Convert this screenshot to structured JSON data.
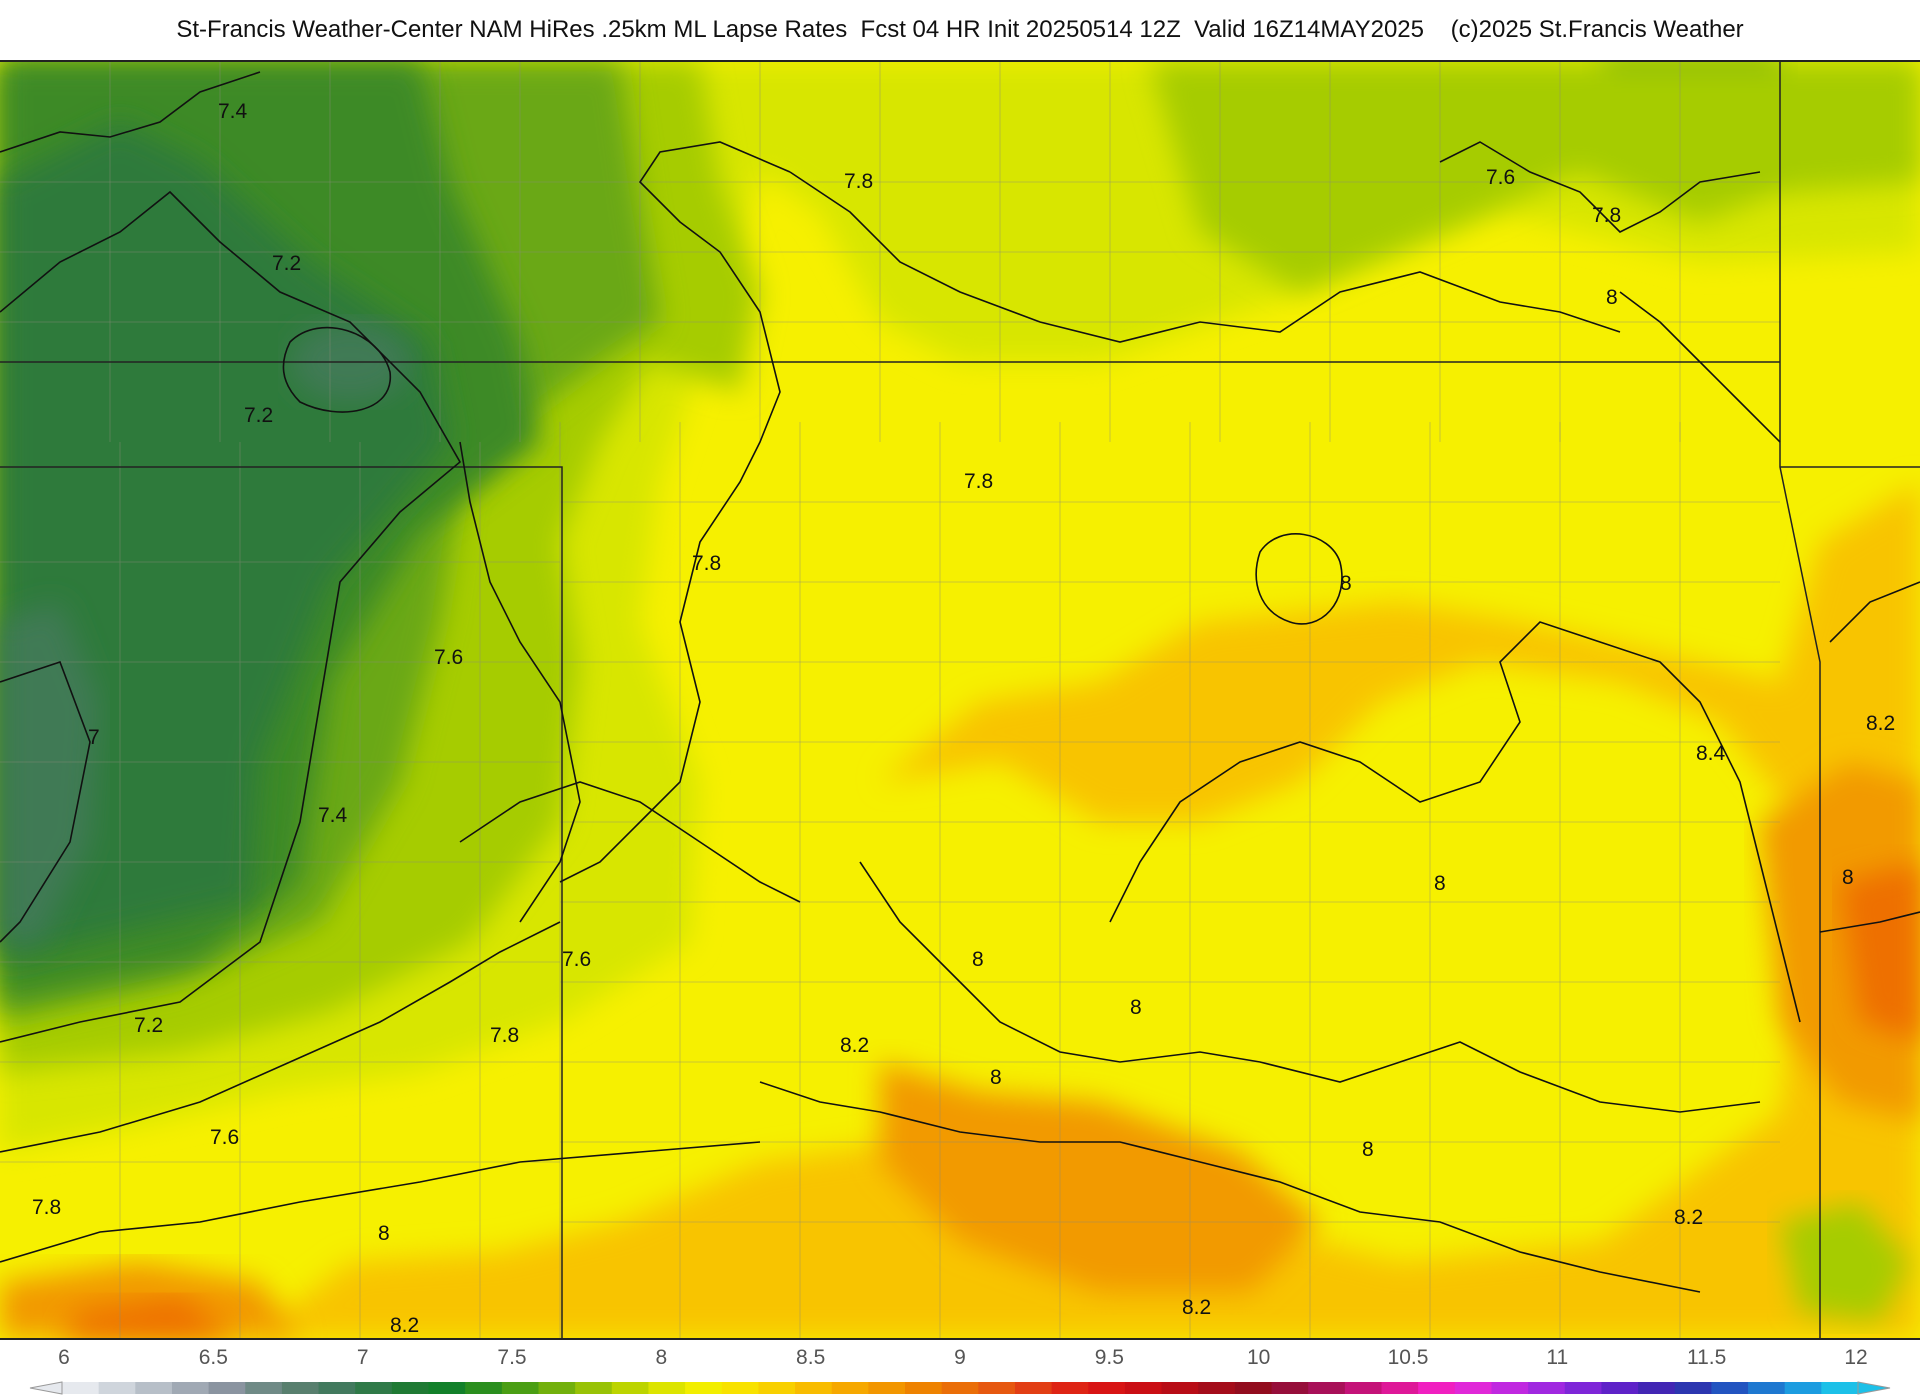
{
  "header": {
    "title": "St-Francis Weather-Center NAM HiRes .25km ML Lapse Rates  Fcst 04 HR Init 20250514 12Z  Valid 16Z14MAY2025    (c)2025 St.Francis Weather"
  },
  "map": {
    "field": "ML Lapse Rates",
    "colors": {
      "c6": "#d8dde3",
      "c65": "#8d9aa6",
      "c68": "#3f7a55",
      "c70": "#2e7a3a",
      "c72": "#3d8a28",
      "c74": "#6aa818",
      "c76": "#a6cc00",
      "c78": "#d8e600",
      "c80": "#f6f000",
      "c82": "#f8c400",
      "c84": "#f29a00",
      "c86": "#ee7000",
      "c88": "#e84010",
      "c90": "#e01010"
    },
    "contour_labels": [
      {
        "value": "7.4",
        "x": 8.1,
        "y": 7.4
      },
      {
        "value": "7.2",
        "x": 8.3,
        "y": 7.2
      },
      {
        "value": "7.2",
        "x": 8.0,
        "y": 7.2
      },
      {
        "value": "7",
        "x": 7.0,
        "y": 7.0
      },
      {
        "value": "7.4",
        "x": 7.4,
        "y": 7.4
      },
      {
        "value": "7.6",
        "x": 7.6,
        "y": 7.6
      },
      {
        "value": "7.2",
        "x": 7.2,
        "y": 7.2
      },
      {
        "value": "7.6",
        "x": 7.6,
        "y": 7.6
      },
      {
        "value": "7.8",
        "x": 7.8,
        "y": 7.8
      },
      {
        "value": "7.8",
        "x": 7.8,
        "y": 7.8
      },
      {
        "value": "8",
        "x": 8.0,
        "y": 8.0
      },
      {
        "value": "8.2",
        "x": 8.2,
        "y": 8.2
      },
      {
        "value": "7.8",
        "x": 7.8,
        "y": 7.8
      },
      {
        "value": "7.8",
        "x": 7.8,
        "y": 7.8
      },
      {
        "value": "7.8",
        "x": 7.8,
        "y": 7.8
      },
      {
        "value": "7.6",
        "x": 7.6,
        "y": 7.6
      },
      {
        "value": "7.6",
        "x": 7.6,
        "y": 7.6
      },
      {
        "value": "7.8",
        "x": 7.8,
        "y": 7.8
      },
      {
        "value": "8",
        "x": 8.0,
        "y": 8.0
      },
      {
        "value": "8",
        "x": 8.0,
        "y": 8.0
      },
      {
        "value": "8.2",
        "x": 8.2,
        "y": 8.2
      },
      {
        "value": "8.4",
        "x": 8.4,
        "y": 8.4
      },
      {
        "value": "8",
        "x": 8.0,
        "y": 8.0
      },
      {
        "value": "8",
        "x": 8.0,
        "y": 8.0
      },
      {
        "value": "8",
        "x": 8.0,
        "y": 8.0
      },
      {
        "value": "8",
        "x": 8.0,
        "y": 8.0
      },
      {
        "value": "8.2",
        "x": 8.2,
        "y": 8.2
      },
      {
        "value": "8",
        "x": 8.0,
        "y": 8.0
      },
      {
        "value": "8",
        "x": 8.0,
        "y": 8.0
      },
      {
        "value": "8.2",
        "x": 8.2,
        "y": 8.2
      }
    ]
  },
  "colorbar": {
    "ticks": [
      "6",
      "6.5",
      "7",
      "7.5",
      "8",
      "8.5",
      "9",
      "9.5",
      "10",
      "10.5",
      "11",
      "11.5",
      "12"
    ],
    "colors": [
      "#e6e9ee",
      "#cfd5dc",
      "#b7bfc8",
      "#a0a9b4",
      "#8a94a0",
      "#6f8a86",
      "#587f6e",
      "#427a5e",
      "#2f7a48",
      "#1f7a34",
      "#12802a",
      "#2a8e1e",
      "#4a9e14",
      "#72b00c",
      "#98c206",
      "#bcd400",
      "#dce400",
      "#f2ee00",
      "#f8e200",
      "#f8d000",
      "#f8bc00",
      "#f6a800",
      "#f29600",
      "#ee8200",
      "#ea6e08",
      "#e65810",
      "#e23e14",
      "#de2414",
      "#d81414",
      "#ca0e14",
      "#b80c16",
      "#a40c1a",
      "#920c1e",
      "#960e3a",
      "#a81058",
      "#c41278",
      "#de1898",
      "#f020c0",
      "#e028d8",
      "#c028e0",
      "#a028e0",
      "#7e26d8",
      "#5e22c8",
      "#4226b4",
      "#2c36b0",
      "#2254c0",
      "#1e78d0",
      "#1c9ce0",
      "#1cc0e8"
    ],
    "min": 6,
    "max": 12
  }
}
